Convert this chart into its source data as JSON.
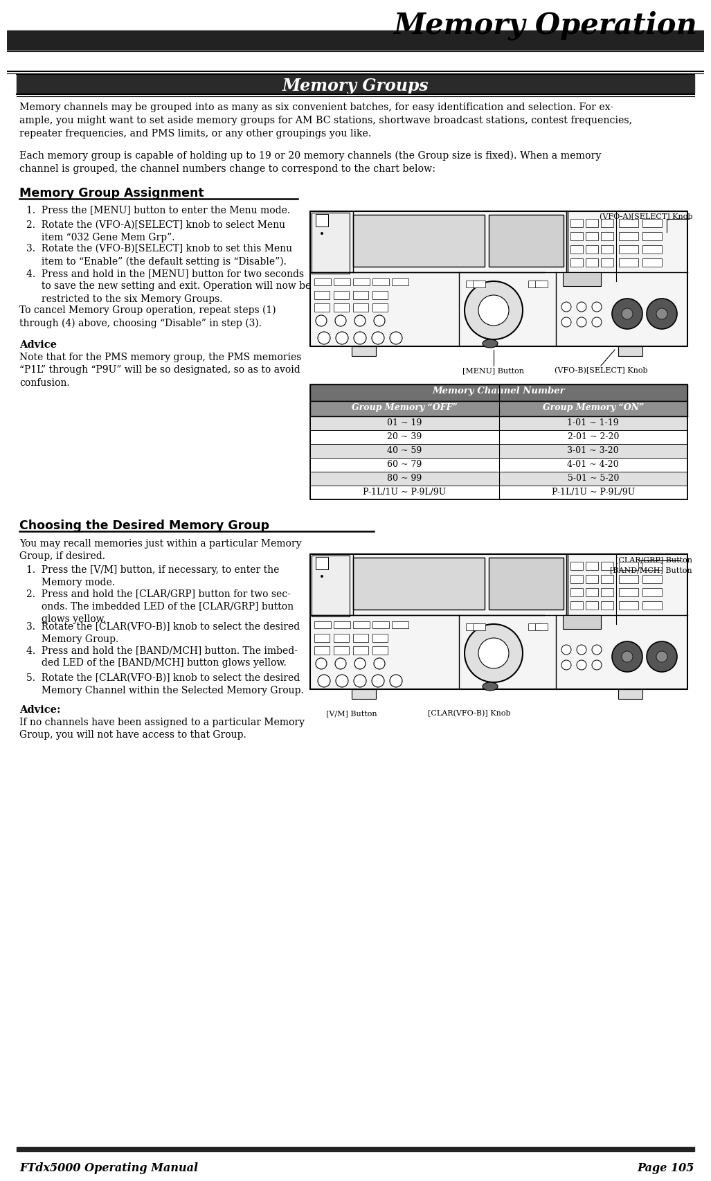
{
  "page_title": "Memory Operation",
  "section_title": "Memory Groups",
  "footer_left": "FTdx5000 Operating Manual",
  "footer_right": "Page 105",
  "bg_color": "#ffffff",
  "header_bar_color": "#222222",
  "body_text_1": "Memory channels may be grouped into as many as six convenient batches, for easy identification and selection. For ex-ample, you might want to set aside memory groups for AM BC stations, shortwave broadcast stations, contest frequencies, repeater frequencies, and PMS limits, or any other groupings you like.",
  "body_text_2": "Each memory group is capable of holding up to 19 or 20 memory channels (the Group size is fixed). When a memory channel is grouped, the channel numbers change to correspond to the chart below:",
  "subsection1_title": "Memory Group Assignment",
  "cancel_text": "To cancel Memory Group operation, repeat steps (1)\nthrough (4) above, choosing “Disable” in step (3).",
  "advice1_title": "Advice",
  "advice1_text": "Note that for the PMS memory group, the PMS memories\n“P1L” through “P9U” will be so designated, so as to avoid\nconfusion.",
  "table_header": "Memory Channel Number",
  "table_col1": "Group Memory “OFF”",
  "table_col2": "Group Memory “ON”",
  "table_rows": [
    [
      "01 ~ 19",
      "1-01 ~ 1-19"
    ],
    [
      "20 ~ 39",
      "2-01 ~ 2-20"
    ],
    [
      "40 ~ 59",
      "3-01 ~ 3-20"
    ],
    [
      "60 ~ 79",
      "4-01 ~ 4-20"
    ],
    [
      "80 ~ 99",
      "5-01 ~ 5-20"
    ],
    [
      "P-1L/1U ~ P-9L/9U",
      "P-1L/1U ~ P-9L/9U"
    ]
  ],
  "label_vfo_a": "(VFO-A)[SELECT] Knob",
  "label_menu": "[MENU] Button",
  "label_vfo_b": "(VFO-B)[SELECT] Knob",
  "subsection2_title": "Choosing the Desired Memory Group",
  "advice2_title": "Advice:",
  "advice2_text": "If no channels have been assigned to a particular Memory\nGroup, you will not have access to that Group.",
  "label_clar_grp": "[CLAR/GRP] Button",
  "label_band_mch": "[BAND/MCH] Button",
  "label_vm": "[V/M] Button",
  "label_clar_vfob": "[CLAR(VFO-B)] Knob",
  "table_bg_header": "#808080",
  "table_bg_subheader": "#a0a0a0",
  "table_bg_row_even": "#e8e8e8",
  "table_bg_row_odd": "#ffffff"
}
